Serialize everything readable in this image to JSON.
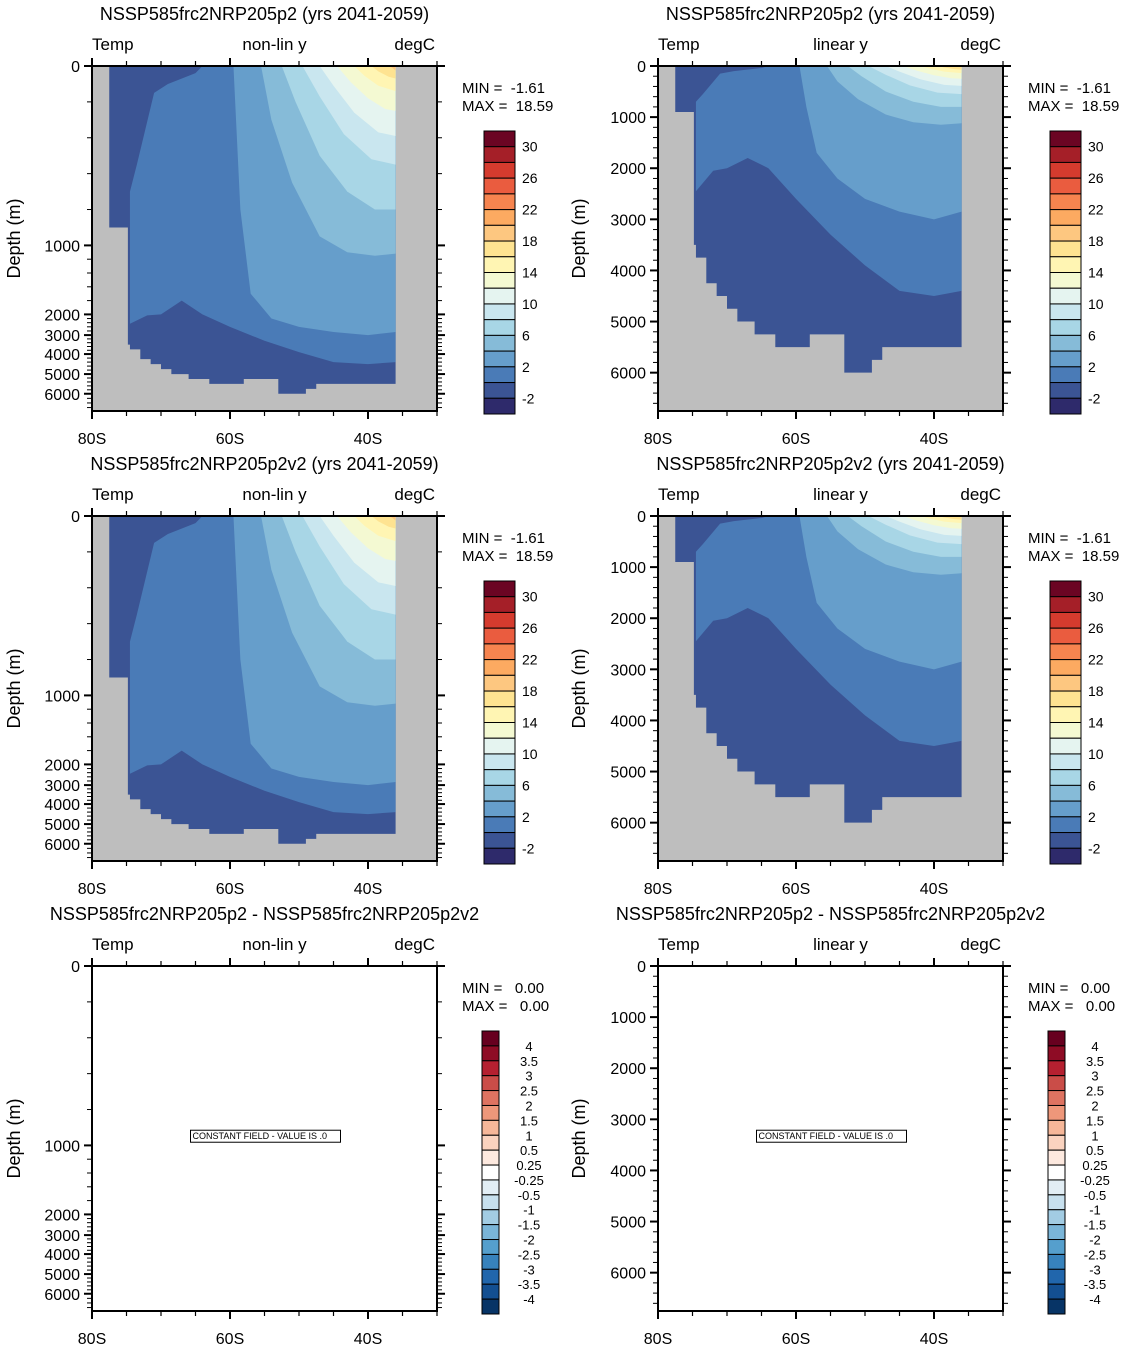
{
  "figure": {
    "type": "ocean-depth-latitude-section-panels",
    "layout": "3 rows x 2 columns"
  },
  "chart_data": [
    {
      "id": "p1",
      "type": "heatmap",
      "title": "NSSP585frc2NRP205p2 (yrs 2041-2059)",
      "left_string": "Temp",
      "center_string": "non-lin y",
      "right_string": "degC",
      "ylabel": "Depth (m)",
      "y_scale": "non-linear",
      "y_ticks": [
        "0",
        "1000",
        "2000",
        "3000",
        "4000",
        "5000",
        "6000"
      ],
      "x_ticks": [
        "80S",
        "60S",
        "40S"
      ],
      "xlim": [
        -80,
        -30
      ],
      "ylim": [
        0,
        6750
      ],
      "min_label": "MIN =  -1.61",
      "max_label": "MAX =  18.59",
      "colorbar": "temp",
      "field": "temperature"
    },
    {
      "id": "p2",
      "type": "heatmap",
      "title": "NSSP585frc2NRP205p2 (yrs 2041-2059)",
      "left_string": "Temp",
      "center_string": "linear y",
      "right_string": "degC",
      "ylabel": "Depth (m)",
      "y_scale": "linear",
      "y_ticks": [
        "0",
        "1000",
        "2000",
        "3000",
        "4000",
        "5000",
        "6000"
      ],
      "x_ticks": [
        "80S",
        "60S",
        "40S"
      ],
      "xlim": [
        -80,
        -30
      ],
      "ylim": [
        0,
        6750
      ],
      "min_label": "MIN =  -1.61",
      "max_label": "MAX =  18.59",
      "colorbar": "temp",
      "field": "temperature"
    },
    {
      "id": "p3",
      "type": "heatmap",
      "title": "NSSP585frc2NRP205p2v2 (yrs 2041-2059)",
      "left_string": "Temp",
      "center_string": "non-lin y",
      "right_string": "degC",
      "ylabel": "Depth (m)",
      "y_scale": "non-linear",
      "y_ticks": [
        "0",
        "1000",
        "2000",
        "3000",
        "4000",
        "5000",
        "6000"
      ],
      "x_ticks": [
        "80S",
        "60S",
        "40S"
      ],
      "xlim": [
        -80,
        -30
      ],
      "ylim": [
        0,
        6750
      ],
      "min_label": "MIN =  -1.61",
      "max_label": "MAX =  18.59",
      "colorbar": "temp",
      "field": "temperature"
    },
    {
      "id": "p4",
      "type": "heatmap",
      "title": "NSSP585frc2NRP205p2v2 (yrs 2041-2059)",
      "left_string": "Temp",
      "center_string": "linear y",
      "right_string": "degC",
      "ylabel": "Depth (m)",
      "y_scale": "linear",
      "y_ticks": [
        "0",
        "1000",
        "2000",
        "3000",
        "4000",
        "5000",
        "6000"
      ],
      "x_ticks": [
        "80S",
        "60S",
        "40S"
      ],
      "xlim": [
        -80,
        -30
      ],
      "ylim": [
        0,
        6750
      ],
      "min_label": "MIN =  -1.61",
      "max_label": "MAX =  18.59",
      "colorbar": "temp",
      "field": "temperature"
    },
    {
      "id": "p5",
      "type": "heatmap",
      "title": "NSSP585frc2NRP205p2 - NSSP585frc2NRP205p2v2",
      "left_string": "Temp",
      "center_string": "non-lin y",
      "right_string": "degC",
      "ylabel": "Depth (m)",
      "y_scale": "non-linear",
      "y_ticks": [
        "0",
        "1000",
        "2000",
        "3000",
        "4000",
        "5000",
        "6000"
      ],
      "x_ticks": [
        "80S",
        "60S",
        "40S"
      ],
      "xlim": [
        -80,
        -30
      ],
      "ylim": [
        0,
        6750
      ],
      "min_label": "MIN =   0.00",
      "max_label": "MAX =   0.00",
      "colorbar": "diff",
      "field": "constant",
      "annotation": "CONSTANT FIELD - VALUE IS .0"
    },
    {
      "id": "p6",
      "type": "heatmap",
      "title": "NSSP585frc2NRP205p2 - NSSP585frc2NRP205p2v2",
      "left_string": "Temp",
      "center_string": "linear y",
      "right_string": "degC",
      "ylabel": "Depth (m)",
      "y_scale": "linear",
      "y_ticks": [
        "0",
        "1000",
        "2000",
        "3000",
        "4000",
        "5000",
        "6000"
      ],
      "x_ticks": [
        "80S",
        "60S",
        "40S"
      ],
      "xlim": [
        -80,
        -30
      ],
      "ylim": [
        0,
        6750
      ],
      "min_label": "MIN =   0.00",
      "max_label": "MAX =   0.00",
      "colorbar": "diff",
      "field": "constant",
      "annotation": "CONSTANT FIELD - VALUE IS .0"
    }
  ],
  "colorbars": {
    "temp": {
      "labels": [
        "30",
        "26",
        "22",
        "18",
        "14",
        "10",
        "6",
        "2",
        "-2"
      ],
      "levels": [
        -2,
        0,
        2,
        4,
        6,
        8,
        10,
        12,
        14,
        16,
        18,
        20,
        22,
        24,
        26,
        28,
        30
      ],
      "colors": [
        "#2e2a6b",
        "#3b5494",
        "#4a7bb7",
        "#669ecb",
        "#86bbd8",
        "#a8d6e6",
        "#c9e6ef",
        "#e5f4f0",
        "#f4f9d2",
        "#fff5b3",
        "#fee391",
        "#fdc780",
        "#fcaa61",
        "#f6844f",
        "#ea5c3f",
        "#d53b2e",
        "#a51f28",
        "#6b0523"
      ]
    },
    "diff": {
      "labels": [
        "4",
        "3.5",
        "3",
        "2.5",
        "2",
        "1.5",
        "1",
        "0.5",
        "0.25",
        "-0.25",
        "-0.5",
        "-1",
        "-1.5",
        "-2",
        "-2.5",
        "-3",
        "-3.5",
        "-4"
      ],
      "levels": [
        -4,
        -3.5,
        -3,
        -2.5,
        -2,
        -1.5,
        -1,
        -0.5,
        -0.25,
        0.25,
        0.5,
        1,
        1.5,
        2,
        2.5,
        3,
        3.5,
        4
      ],
      "colors": [
        "#073466",
        "#134f91",
        "#2166ac",
        "#3782bc",
        "#559fcd",
        "#7ab5d8",
        "#a2cce3",
        "#c7e0ee",
        "#e2eef5",
        "#ffffff",
        "#fde9df",
        "#fad3bf",
        "#f6b799",
        "#ee977a",
        "#de7361",
        "#ca4d48",
        "#b52030",
        "#8e0c25",
        "#67001f"
      ]
    }
  },
  "land_color": "#bebebe"
}
